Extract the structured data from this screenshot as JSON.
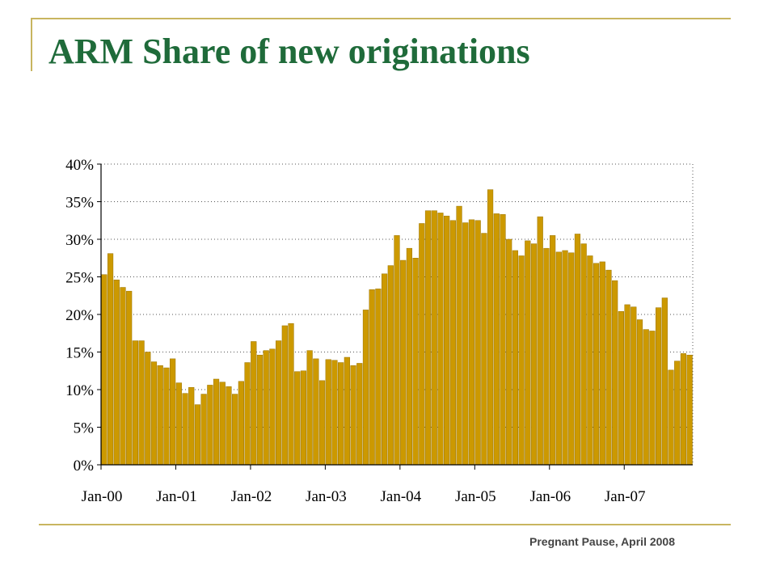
{
  "slide": {
    "title": "ARM Share of new originations",
    "footer": "Pregnant Pause, April 2008"
  },
  "colors": {
    "title": "#1f6b3a",
    "rule": "#c8b560",
    "bar": "#cc9900",
    "bar_stroke": "#9a7300",
    "grid": "#555555"
  },
  "chart_data": {
    "type": "bar",
    "title": "",
    "xlabel": "",
    "ylabel": "",
    "ylim": [
      0,
      40
    ],
    "yticks": [
      "0%",
      "5%",
      "10%",
      "15%",
      "20%",
      "25%",
      "30%",
      "35%",
      "40%"
    ],
    "xtick_labels": [
      "Jan-00",
      "Jan-01",
      "Jan-02",
      "Jan-03",
      "Jan-04",
      "Jan-05",
      "Jan-06",
      "Jan-07"
    ],
    "grid": "horizontal dotted",
    "start_month": "Jan-00",
    "series": [
      {
        "values": [
          25.3,
          28.1,
          24.6,
          23.6,
          23.1,
          16.5,
          16.5,
          15.0,
          13.7,
          13.2,
          12.9,
          14.1,
          10.9,
          9.5,
          10.3,
          8.0,
          9.4,
          10.6,
          11.4,
          11.0,
          10.4,
          9.4,
          11.1,
          13.6,
          16.4,
          14.6,
          15.2,
          15.4,
          16.5,
          18.5,
          18.8,
          12.4,
          12.5,
          15.2,
          14.1,
          11.2,
          14.0,
          13.9,
          13.6,
          14.3,
          13.2,
          13.5,
          20.6,
          23.3,
          23.4,
          25.4,
          26.5,
          30.5,
          27.2,
          28.8,
          27.5,
          32.1,
          33.8,
          33.8,
          33.5,
          33.1,
          32.5,
          34.4,
          32.2,
          32.6,
          32.5,
          30.8,
          36.6,
          33.4,
          33.3,
          30.0,
          28.5,
          27.8,
          29.8,
          29.4,
          33.0,
          28.8,
          30.5,
          28.3,
          28.5,
          28.2,
          30.7,
          29.4,
          27.8,
          26.8,
          27.0,
          25.9,
          24.5,
          20.4,
          21.3,
          21.0,
          19.3,
          18.0,
          17.8,
          20.9,
          22.2,
          12.6,
          13.8,
          14.8,
          14.6
        ]
      }
    ]
  }
}
